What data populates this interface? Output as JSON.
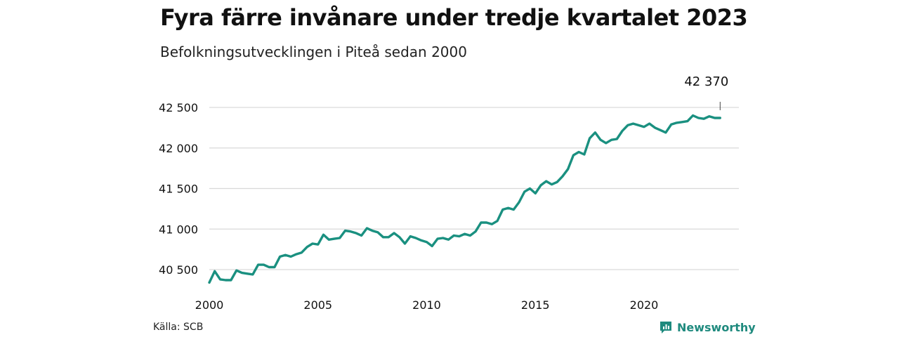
{
  "header": {
    "title": "Fyra färre invånare under tredje kvartalet 2023",
    "subtitle": "Befolkningsutvecklingen i Piteå sedan 2000"
  },
  "footer": {
    "source": "Källa: SCB",
    "brand": "Newsworthy",
    "brand_icon": "newsworthy-logo-icon"
  },
  "colors": {
    "line": "#1a9080",
    "grid": "#d9d9d9",
    "brand": "#1f8a7e"
  },
  "chart_data": {
    "type": "line",
    "title": "Fyra färre invånare under tredje kvartalet 2023",
    "subtitle": "Befolkningsutvecklingen i Piteå sedan 2000",
    "xlabel": "",
    "ylabel": "",
    "x_ticks": [
      "2000",
      "2005",
      "2010",
      "2015",
      "2020"
    ],
    "y_ticks": [
      "40 500",
      "41 000",
      "41 500",
      "42 000",
      "42 500"
    ],
    "y_tick_values": [
      40500,
      41000,
      41500,
      42000,
      42500
    ],
    "xlim": [
      2000,
      2024
    ],
    "ylim": [
      40300,
      42600
    ],
    "grid": true,
    "annotation": {
      "label": "42 370",
      "x": "2023 Q3",
      "value": 42370
    },
    "series": [
      {
        "x": [
          "2000 Q1",
          "2000 Q2",
          "2000 Q3",
          "2000 Q4",
          "2001 Q1",
          "2001 Q2",
          "2001 Q3",
          "2001 Q4",
          "2002 Q1",
          "2002 Q2",
          "2002 Q3",
          "2002 Q4",
          "2003 Q1",
          "2003 Q2",
          "2003 Q3",
          "2003 Q4",
          "2004 Q1",
          "2004 Q2",
          "2004 Q3",
          "2004 Q4",
          "2005 Q1",
          "2005 Q2",
          "2005 Q3",
          "2005 Q4",
          "2006 Q1",
          "2006 Q2",
          "2006 Q3",
          "2006 Q4",
          "2007 Q1",
          "2007 Q2",
          "2007 Q3",
          "2007 Q4",
          "2008 Q1",
          "2008 Q2",
          "2008 Q3",
          "2008 Q4",
          "2009 Q1",
          "2009 Q2",
          "2009 Q3",
          "2009 Q4",
          "2010 Q1",
          "2010 Q2",
          "2010 Q3",
          "2010 Q4",
          "2011 Q1",
          "2011 Q2",
          "2011 Q3",
          "2011 Q4",
          "2012 Q1",
          "2012 Q2",
          "2012 Q3",
          "2012 Q4",
          "2013 Q1",
          "2013 Q2",
          "2013 Q3",
          "2013 Q4",
          "2014 Q1",
          "2014 Q2",
          "2014 Q3",
          "2014 Q4",
          "2015 Q1",
          "2015 Q2",
          "2015 Q3",
          "2015 Q4",
          "2016 Q1",
          "2016 Q2",
          "2016 Q3",
          "2016 Q4",
          "2017 Q1",
          "2017 Q2",
          "2017 Q3",
          "2017 Q4",
          "2018 Q1",
          "2018 Q2",
          "2018 Q3",
          "2018 Q4",
          "2019 Q1",
          "2019 Q2",
          "2019 Q3",
          "2019 Q4",
          "2020 Q1",
          "2020 Q2",
          "2020 Q3",
          "2020 Q4",
          "2021 Q1",
          "2021 Q2",
          "2021 Q3",
          "2021 Q4",
          "2022 Q1",
          "2022 Q2",
          "2022 Q3",
          "2022 Q4",
          "2023 Q1",
          "2023 Q2",
          "2023 Q3"
        ],
        "values": [
          40340,
          40480,
          40380,
          40370,
          40370,
          40490,
          40460,
          40450,
          40440,
          40560,
          40560,
          40530,
          40530,
          40660,
          40680,
          40660,
          40690,
          40710,
          40780,
          40820,
          40810,
          40930,
          40870,
          40880,
          40890,
          40980,
          40970,
          40950,
          40920,
          41010,
          40980,
          40960,
          40900,
          40900,
          40950,
          40900,
          40820,
          40910,
          40890,
          40860,
          40840,
          40790,
          40880,
          40890,
          40870,
          40920,
          40910,
          40940,
          40920,
          40970,
          41080,
          41080,
          41060,
          41100,
          41240,
          41260,
          41240,
          41330,
          41460,
          41500,
          41440,
          41540,
          41590,
          41550,
          41580,
          41650,
          41740,
          41910,
          41950,
          41920,
          42120,
          42190,
          42100,
          42060,
          42100,
          42110,
          42210,
          42280,
          42300,
          42280,
          42260,
          42300,
          42250,
          42220,
          42190,
          42290,
          42310,
          42320,
          42330,
          42400,
          42370,
          42360,
          42390,
          42370,
          42370
        ]
      }
    ]
  }
}
